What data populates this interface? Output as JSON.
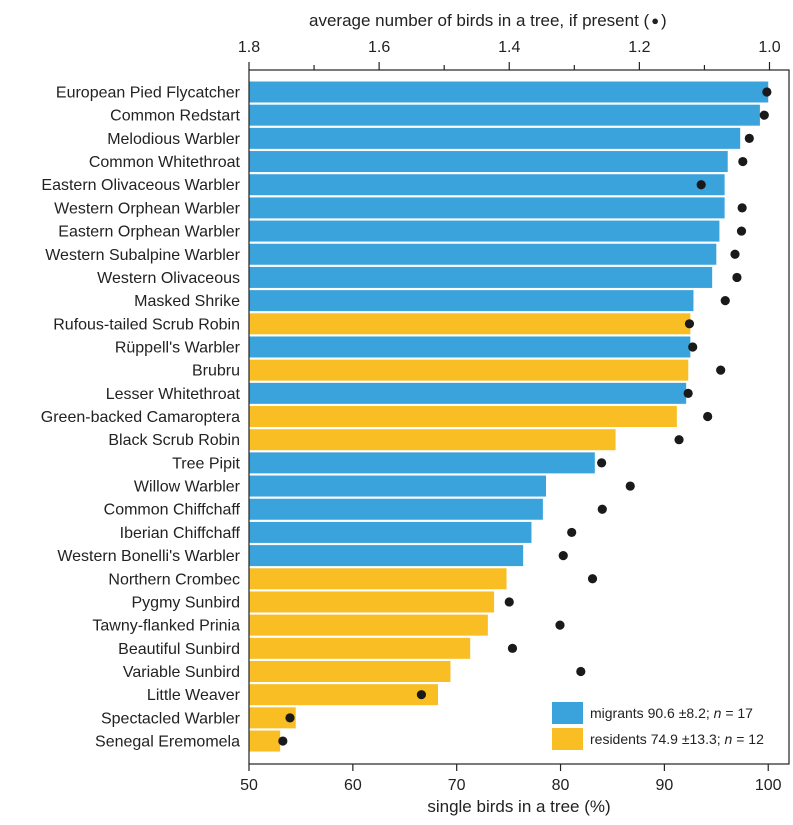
{
  "chart_data": {
    "type": "bar",
    "orientation": "horizontal",
    "xlabel": "single birds in a tree (%)",
    "x2label": "average number of birds in a tree, if present (",
    "x2label_marker": "●",
    "x2label_close": ")",
    "xlim": [
      50,
      102
    ],
    "x2lim": [
      1.8,
      0.97
    ],
    "xticks": [
      50,
      60,
      70,
      80,
      90,
      100
    ],
    "x2ticks": [
      "1.8",
      "1.6",
      "1.4",
      "1.2",
      "1.0"
    ],
    "colors": {
      "migrants": "#3ba3dc",
      "residents": "#f8be23",
      "dot": "#1a1a1a"
    },
    "legend": {
      "position": "bottom-right",
      "migrants": {
        "text": "migrants 90.6 ±8.2; ",
        "n_label": "n",
        "n_value": " = 17"
      },
      "residents": {
        "text": "residents 74.9 ±13.3; ",
        "n_label": "n",
        "n_value": " = 12"
      }
    },
    "species": [
      {
        "name": "European Pied Flycatcher",
        "group": "migrants",
        "single_pct": 100.0,
        "avg_birds": 1.004
      },
      {
        "name": "Common Redstart",
        "group": "migrants",
        "single_pct": 99.2,
        "avg_birds": 1.008
      },
      {
        "name": "Melodious Warbler",
        "group": "migrants",
        "single_pct": 97.3,
        "avg_birds": 1.031
      },
      {
        "name": "Common Whitethroat",
        "group": "migrants",
        "single_pct": 96.1,
        "avg_birds": 1.041
      },
      {
        "name": "Eastern Olivaceous Warbler",
        "group": "migrants",
        "single_pct": 95.8,
        "avg_birds": 1.105
      },
      {
        "name": "Western Orphean Warbler",
        "group": "migrants",
        "single_pct": 95.8,
        "avg_birds": 1.042
      },
      {
        "name": "Eastern Orphean Warbler",
        "group": "migrants",
        "single_pct": 95.3,
        "avg_birds": 1.043
      },
      {
        "name": "Western Subalpine Warbler",
        "group": "migrants",
        "single_pct": 95.0,
        "avg_birds": 1.053
      },
      {
        "name": "Western Olivaceous",
        "group": "migrants",
        "single_pct": 94.6,
        "avg_birds": 1.05
      },
      {
        "name": "Masked Shrike",
        "group": "migrants",
        "single_pct": 92.8,
        "avg_birds": 1.068
      },
      {
        "name": "Rufous-tailed Scrub Robin",
        "group": "residents",
        "single_pct": 92.5,
        "avg_birds": 1.123
      },
      {
        "name": "Rüppell's Warbler",
        "group": "migrants",
        "single_pct": 92.5,
        "avg_birds": 1.118
      },
      {
        "name": "Brubru",
        "group": "residents",
        "single_pct": 92.3,
        "avg_birds": 1.075
      },
      {
        "name": "Lesser Whitethroat",
        "group": "migrants",
        "single_pct": 92.1,
        "avg_birds": 1.125
      },
      {
        "name": "Green-backed Camaroptera",
        "group": "residents",
        "single_pct": 91.2,
        "avg_birds": 1.095
      },
      {
        "name": "Black Scrub Robin",
        "group": "residents",
        "single_pct": 85.3,
        "avg_birds": 1.139
      },
      {
        "name": "Tree Pipit",
        "group": "migrants",
        "single_pct": 83.3,
        "avg_birds": 1.258
      },
      {
        "name": "Willow Warbler",
        "group": "migrants",
        "single_pct": 78.6,
        "avg_birds": 1.214
      },
      {
        "name": "Common Chiffchaff",
        "group": "migrants",
        "single_pct": 78.3,
        "avg_birds": 1.257
      },
      {
        "name": "Iberian Chiffchaff",
        "group": "migrants",
        "single_pct": 77.2,
        "avg_birds": 1.304
      },
      {
        "name": "Western Bonelli's Warbler",
        "group": "migrants",
        "single_pct": 76.4,
        "avg_birds": 1.317
      },
      {
        "name": "Northern Crombec",
        "group": "residents",
        "single_pct": 74.8,
        "avg_birds": 1.272
      },
      {
        "name": "Pygmy Sunbird",
        "group": "residents",
        "single_pct": 73.6,
        "avg_birds": 1.4
      },
      {
        "name": "Tawny-flanked Prinia",
        "group": "residents",
        "single_pct": 73.0,
        "avg_birds": 1.322
      },
      {
        "name": "Beautiful Sunbird",
        "group": "residents",
        "single_pct": 71.3,
        "avg_birds": 1.395
      },
      {
        "name": "Variable Sunbird",
        "group": "residents",
        "single_pct": 69.4,
        "avg_birds": 1.29
      },
      {
        "name": "Little Weaver",
        "group": "residents",
        "single_pct": 68.2,
        "avg_birds": 1.535
      },
      {
        "name": "Spectacled Warbler",
        "group": "residents",
        "single_pct": 54.5,
        "avg_birds": 1.737
      },
      {
        "name": "Senegal Eremomela",
        "group": "residents",
        "single_pct": 53.0,
        "avg_birds": 1.748
      }
    ]
  }
}
